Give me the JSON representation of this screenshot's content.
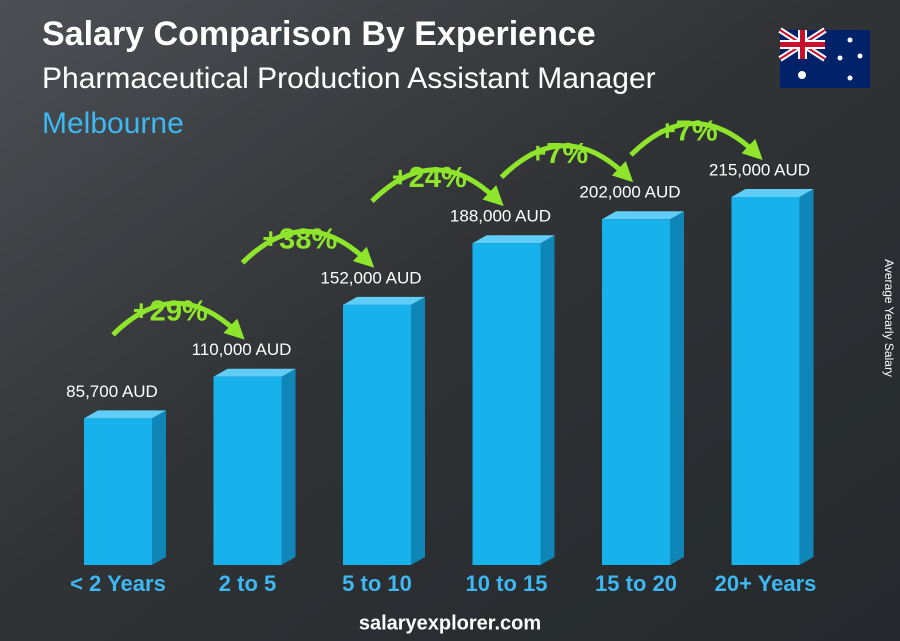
{
  "chart_data": {
    "type": "bar3d",
    "title": "Salary Comparison By Experience",
    "subtitle": "Pharmaceutical Production Assistant Manager",
    "location": "Melbourne",
    "y_label": "Average Yearly Salary",
    "categories": [
      "< 2 Years",
      "2 to 5",
      "5 to 10",
      "10 to 15",
      "15 to 20",
      "20+ Years"
    ],
    "values": [
      85700,
      110000,
      152000,
      188000,
      202000,
      215000
    ],
    "value_labels": [
      "85,700 AUD",
      "110,000 AUD",
      "152,000 AUD",
      "188,000 AUD",
      "202,000 AUD",
      "215,000 AUD"
    ],
    "changes": [
      "+29%",
      "+38%",
      "+24%",
      "+7%",
      "+7%"
    ],
    "color": "#17b1ec",
    "change_color": "#8ee52b",
    "footer": "salaryexplorer.com"
  }
}
